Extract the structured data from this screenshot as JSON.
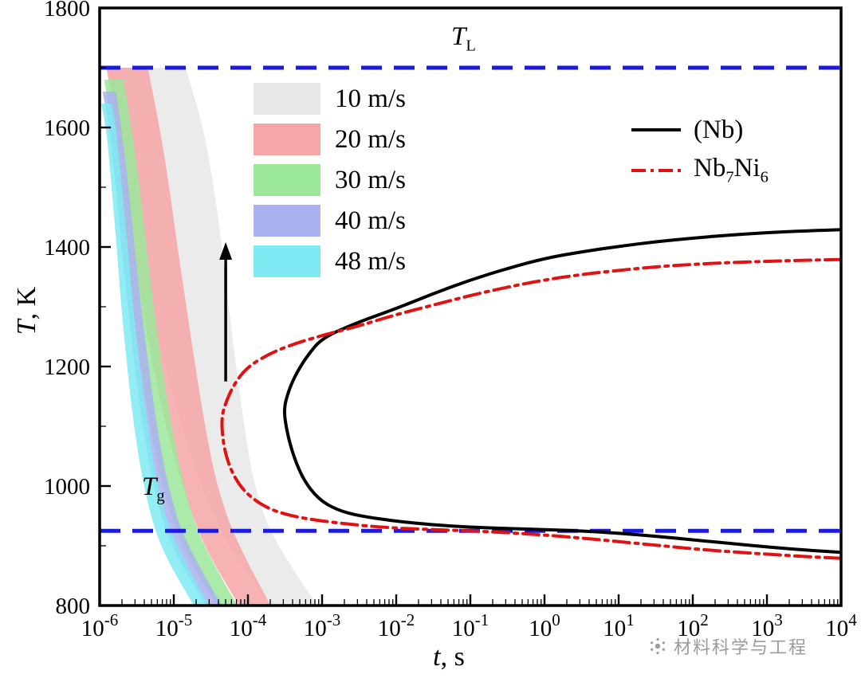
{
  "watermark": {
    "text": "材料科学与工程"
  },
  "chart_data": {
    "type": "line",
    "title": "",
    "xlabel_parts": {
      "var": "t",
      "rest": ", s"
    },
    "ylabel_parts": {
      "var": "T",
      "rest": ", K"
    },
    "xscale": "log",
    "xtick_base": "10",
    "xlim_exponents": [
      -6,
      4
    ],
    "xtick_exponents": [
      -6,
      -5,
      -4,
      -3,
      -2,
      -1,
      0,
      1,
      2,
      3,
      4
    ],
    "ylim": [
      800,
      1800
    ],
    "yticks": [
      800,
      1000,
      1200,
      1400,
      1600,
      1800
    ],
    "y_minor_step": 100,
    "grid": false,
    "legend_velocity_position": "upper-left",
    "legend_phase_position": "upper-right",
    "reference_lines": [
      {
        "id": "TL",
        "label_base": "T",
        "label_sub": "L",
        "temperature_K": 1700,
        "color": "#1a1ae0",
        "style": "dashed"
      },
      {
        "id": "Tg",
        "label_base": "T",
        "label_sub": "g",
        "temperature_K": 925,
        "color": "#1a1ae0",
        "style": "dashed"
      }
    ],
    "series": [
      {
        "name": "(Nb)",
        "label_segments": [
          {
            "t": "(Nb)"
          }
        ],
        "color": "#000000",
        "style": "solid",
        "points": [
          [
            4,
            1429
          ],
          [
            3.5,
            1427
          ],
          [
            3,
            1424
          ],
          [
            2.5,
            1420
          ],
          [
            2,
            1415
          ],
          [
            1.5,
            1409
          ],
          [
            1,
            1401
          ],
          [
            0.5,
            1392
          ],
          [
            0,
            1381
          ],
          [
            -0.5,
            1364
          ],
          [
            -1,
            1345
          ],
          [
            -1.5,
            1322
          ],
          [
            -2,
            1297
          ],
          [
            -2.5,
            1275
          ],
          [
            -3,
            1248
          ],
          [
            -3.2,
            1218
          ],
          [
            -3.35,
            1188
          ],
          [
            -3.45,
            1160
          ],
          [
            -3.52,
            1128
          ],
          [
            -3.47,
            1088
          ],
          [
            -3.38,
            1048
          ],
          [
            -3.25,
            1010
          ],
          [
            -3.05,
            978
          ],
          [
            -2.8,
            960
          ],
          [
            -2.5,
            950
          ],
          [
            -2,
            941
          ],
          [
            -1.5,
            935
          ],
          [
            -1,
            931
          ],
          [
            -0.5,
            929
          ],
          [
            0,
            927
          ],
          [
            0.5,
            925
          ],
          [
            1,
            921
          ],
          [
            1.5,
            916
          ],
          [
            2,
            910
          ],
          [
            2.5,
            904
          ],
          [
            3,
            898
          ],
          [
            3.5,
            893
          ],
          [
            4,
            889
          ]
        ]
      },
      {
        "name": "Nb7Ni6",
        "label_segments": [
          {
            "t": "Nb"
          },
          {
            "sub": "7"
          },
          {
            "t": "Ni"
          },
          {
            "sub": "6"
          }
        ],
        "color": "#e01212",
        "style": "dashdot",
        "points": [
          [
            4,
            1379
          ],
          [
            3.5,
            1378
          ],
          [
            3,
            1376
          ],
          [
            2.5,
            1374
          ],
          [
            2,
            1371
          ],
          [
            1.5,
            1367
          ],
          [
            1,
            1361
          ],
          [
            0.5,
            1354
          ],
          [
            0,
            1345
          ],
          [
            -0.5,
            1333
          ],
          [
            -1,
            1319
          ],
          [
            -1.5,
            1303
          ],
          [
            -2,
            1287
          ],
          [
            -2.5,
            1268
          ],
          [
            -3,
            1252
          ],
          [
            -3.4,
            1237
          ],
          [
            -3.7,
            1222
          ],
          [
            -4,
            1200
          ],
          [
            -4.18,
            1172
          ],
          [
            -4.3,
            1140
          ],
          [
            -4.36,
            1112
          ],
          [
            -4.33,
            1068
          ],
          [
            -4.25,
            1032
          ],
          [
            -4.12,
            1002
          ],
          [
            -3.95,
            980
          ],
          [
            -3.72,
            962
          ],
          [
            -3.45,
            951
          ],
          [
            -3.1,
            943
          ],
          [
            -2.7,
            937
          ],
          [
            -2.3,
            932
          ],
          [
            -1.9,
            929
          ],
          [
            -1.5,
            927
          ],
          [
            -1,
            925
          ],
          [
            -0.5,
            922
          ],
          [
            0,
            918
          ],
          [
            0.5,
            913
          ],
          [
            1,
            907
          ],
          [
            1.5,
            901
          ],
          [
            2,
            895
          ],
          [
            2.5,
            890
          ],
          [
            3,
            886
          ],
          [
            3.5,
            882
          ],
          [
            4,
            879
          ]
        ]
      }
    ],
    "cooling_bands": [
      {
        "label": "10 m/s",
        "color": "#e8e8e8",
        "left": [
          [
            -5.89,
            1700
          ],
          [
            -5.71,
            1600
          ],
          [
            -5.59,
            1500
          ],
          [
            -5.46,
            1400
          ],
          [
            -5.3,
            1300
          ],
          [
            -5.12,
            1200
          ],
          [
            -4.89,
            1100
          ],
          [
            -4.63,
            1000
          ],
          [
            -4.28,
            900
          ],
          [
            -3.67,
            800
          ]
        ],
        "right": [
          [
            -4.84,
            1700
          ],
          [
            -4.6,
            1600
          ],
          [
            -4.46,
            1500
          ],
          [
            -4.35,
            1400
          ],
          [
            -4.26,
            1300
          ],
          [
            -4.16,
            1200
          ],
          [
            -4.05,
            1100
          ],
          [
            -3.92,
            1000
          ],
          [
            -3.63,
            900
          ],
          [
            -3.06,
            800
          ]
        ]
      },
      {
        "label": "20 m/s",
        "color": "#f6a6a6",
        "left": [
          [
            -5.91,
            1700
          ],
          [
            -5.76,
            1600
          ],
          [
            -5.66,
            1500
          ],
          [
            -5.55,
            1400
          ],
          [
            -5.43,
            1300
          ],
          [
            -5.28,
            1200
          ],
          [
            -5.11,
            1100
          ],
          [
            -4.89,
            1000
          ],
          [
            -4.6,
            900
          ],
          [
            -4.12,
            800
          ]
        ],
        "right": [
          [
            -5.35,
            1700
          ],
          [
            -5.19,
            1600
          ],
          [
            -5.06,
            1500
          ],
          [
            -4.95,
            1400
          ],
          [
            -4.83,
            1300
          ],
          [
            -4.71,
            1200
          ],
          [
            -4.58,
            1100
          ],
          [
            -4.42,
            1000
          ],
          [
            -4.14,
            900
          ],
          [
            -3.69,
            800
          ]
        ]
      },
      {
        "label": "30 m/s",
        "color": "#9be89b",
        "left": [
          [
            -5.94,
            1680
          ],
          [
            -5.83,
            1600
          ],
          [
            -5.73,
            1500
          ],
          [
            -5.65,
            1400
          ],
          [
            -5.56,
            1300
          ],
          [
            -5.45,
            1200
          ],
          [
            -5.32,
            1100
          ],
          [
            -5.16,
            1000
          ],
          [
            -4.91,
            900
          ],
          [
            -4.42,
            800
          ]
        ],
        "right": [
          [
            -5.68,
            1680
          ],
          [
            -5.57,
            1600
          ],
          [
            -5.46,
            1500
          ],
          [
            -5.37,
            1400
          ],
          [
            -5.27,
            1300
          ],
          [
            -5.16,
            1200
          ],
          [
            -5.03,
            1100
          ],
          [
            -4.87,
            1000
          ],
          [
            -4.62,
            900
          ],
          [
            -4.14,
            800
          ]
        ]
      },
      {
        "label": "40 m/s",
        "color": "#aab1f0",
        "left": [
          [
            -5.96,
            1660
          ],
          [
            -5.87,
            1600
          ],
          [
            -5.78,
            1500
          ],
          [
            -5.71,
            1400
          ],
          [
            -5.62,
            1300
          ],
          [
            -5.53,
            1200
          ],
          [
            -5.42,
            1100
          ],
          [
            -5.28,
            1000
          ],
          [
            -5.05,
            900
          ],
          [
            -4.57,
            800
          ]
        ],
        "right": [
          [
            -5.78,
            1660
          ],
          [
            -5.71,
            1600
          ],
          [
            -5.61,
            1500
          ],
          [
            -5.53,
            1400
          ],
          [
            -5.44,
            1300
          ],
          [
            -5.34,
            1200
          ],
          [
            -5.23,
            1100
          ],
          [
            -5.08,
            1000
          ],
          [
            -4.84,
            900
          ],
          [
            -4.35,
            800
          ]
        ]
      },
      {
        "label": "48 m/s",
        "color": "#7feaf2",
        "left": [
          [
            -5.98,
            1640
          ],
          [
            -5.91,
            1600
          ],
          [
            -5.84,
            1500
          ],
          [
            -5.77,
            1400
          ],
          [
            -5.71,
            1300
          ],
          [
            -5.63,
            1200
          ],
          [
            -5.54,
            1100
          ],
          [
            -5.41,
            1000
          ],
          [
            -5.2,
            900
          ],
          [
            -4.73,
            800
          ]
        ],
        "right": [
          [
            -5.84,
            1640
          ],
          [
            -5.78,
            1600
          ],
          [
            -5.7,
            1500
          ],
          [
            -5.62,
            1400
          ],
          [
            -5.55,
            1300
          ],
          [
            -5.46,
            1200
          ],
          [
            -5.35,
            1100
          ],
          [
            -5.22,
            1000
          ],
          [
            -4.99,
            900
          ],
          [
            -4.52,
            800
          ]
        ]
      }
    ],
    "annotations": [
      {
        "type": "arrow",
        "logt": -4.3,
        "T_from": 1175,
        "T_to": 1408,
        "color": "#000000"
      }
    ]
  }
}
